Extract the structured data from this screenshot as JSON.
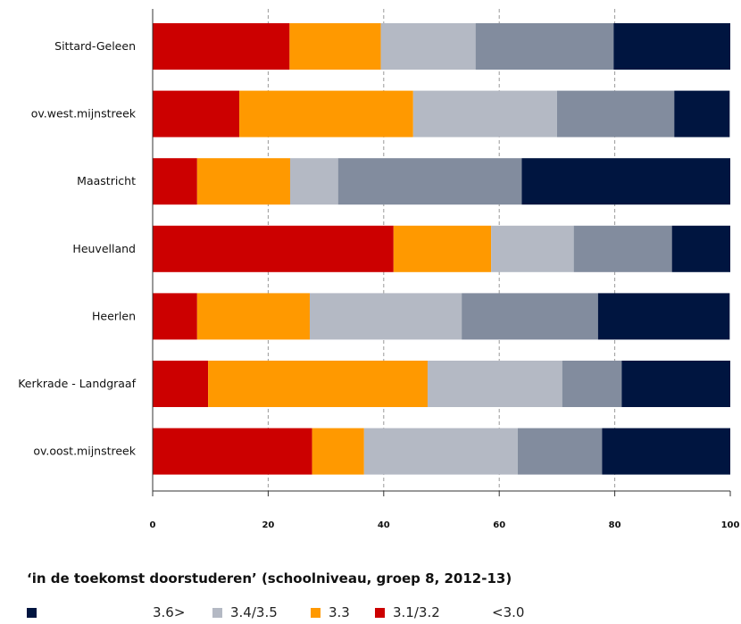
{
  "chart_data": {
    "type": "bar",
    "orientation": "horizontal",
    "stacked": true,
    "categories": [
      "Sittard-Geleen",
      "ov.west.mijnstreek",
      "Maastricht",
      "Heuvelland",
      "Heerlen",
      "Kerkrade - Landgraaf",
      "ov.oost.mijnstreek"
    ],
    "series": [
      {
        "name": "<3.0",
        "color": "#cc0000",
        "values": [
          23.7,
          15.0,
          7.7,
          41.7,
          7.7,
          9.6,
          27.6
        ]
      },
      {
        "name": "3.1/3.2",
        "color": "#ff9900",
        "values": [
          15.8,
          30.1,
          16.1,
          16.9,
          19.5,
          38.0,
          9.0
        ]
      },
      {
        "name": "3.3",
        "color": "#b4b9c4",
        "values": [
          16.4,
          24.9,
          8.3,
          14.3,
          26.3,
          23.3,
          26.6
        ]
      },
      {
        "name": "3.4/3.5",
        "color": "#828c9e",
        "values": [
          23.9,
          20.3,
          31.8,
          17.0,
          23.6,
          10.3,
          14.6
        ]
      },
      {
        "name": "3.6>",
        "color": "#001540",
        "values": [
          20.2,
          9.6,
          36.1,
          10.1,
          22.8,
          18.8,
          22.2
        ]
      }
    ],
    "xlim": [
      0,
      100
    ],
    "xticks": [
      "0",
      "20",
      "40",
      "60",
      "80",
      "100"
    ],
    "grid": "dashed vertical",
    "title": "‘in de toekomst doorstuderen’ (schoolniveau, groep 8, 2012-13)",
    "legend": {
      "position": "bottom",
      "items": [
        {
          "label": "",
          "series": "3.6>",
          "color": "#001540"
        },
        {
          "label": "3.6>",
          "series": "3.4/3.5",
          "color": "#828c9e"
        },
        {
          "label": "3.4/3.5",
          "series": "3.3",
          "color": "#b4b9c4"
        },
        {
          "label": "3.3",
          "series": "3.1/3.2",
          "color": "#ff9900"
        },
        {
          "label": "3.1/3.2",
          "series": "<3.0",
          "color": "#cc0000"
        },
        {
          "label": "<3.0",
          "series": null,
          "color": null
        }
      ]
    }
  }
}
